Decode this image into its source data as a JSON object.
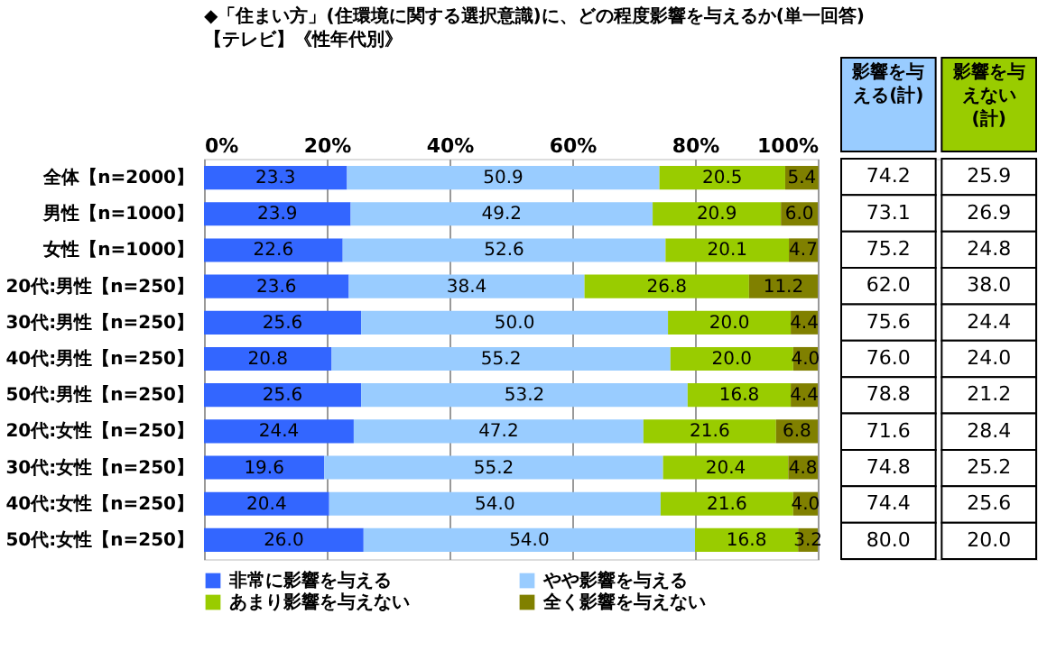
{
  "chart_data": [
    {
      "type": "bar",
      "orientation": "horizontal",
      "stacked": true,
      "title": "◆「住まい方」(住環境に関する選択意識)に、どの程度影響を与えるか(単一回答)",
      "subtitle": "【テレビ】《性年代別》",
      "categories": [
        "全体【n=2000】",
        "男性【n=1000】",
        "女性【n=1000】",
        "20代:男性【n=250】",
        "30代:男性【n=250】",
        "40代:男性【n=250】",
        "50代:男性【n=250】",
        "20代:女性【n=250】",
        "30代:女性【n=250】",
        "40代:女性【n=250】",
        "50代:女性【n=250】"
      ],
      "series": [
        {
          "name": "非常に影響を与える",
          "color": "#3366ff",
          "values": [
            23.3,
            23.9,
            22.6,
            23.6,
            25.6,
            20.8,
            25.6,
            24.4,
            19.6,
            20.4,
            26.0
          ],
          "value_labels": [
            "23.3",
            "23.9",
            "22.6",
            "23.6",
            "25.6",
            "20.8",
            "25.6",
            "24.4",
            "19.6",
            "20.4",
            "26.0"
          ]
        },
        {
          "name": "やや影響を与える",
          "color": "#99ccff",
          "values": [
            50.9,
            49.2,
            52.6,
            38.4,
            50.0,
            55.2,
            53.2,
            47.2,
            55.2,
            54.0,
            54.0
          ],
          "value_labels": [
            "50.9",
            "49.2",
            "52.6",
            "38.4",
            "50.0",
            "55.2",
            "53.2",
            "47.2",
            "55.2",
            "54.0",
            "54.0"
          ]
        },
        {
          "name": "あまり影響を与えない",
          "color": "#99cc00",
          "values": [
            20.5,
            20.9,
            20.1,
            26.8,
            20.0,
            20.0,
            16.8,
            21.6,
            20.4,
            21.6,
            16.8
          ],
          "value_labels": [
            "20.5",
            "20.9",
            "20.1",
            "26.8",
            "20.0",
            "20.0",
            "16.8",
            "21.6",
            "20.4",
            "21.6",
            "16.8"
          ]
        },
        {
          "name": "全く影響を与えない",
          "color": "#808000",
          "values": [
            5.4,
            6.0,
            4.7,
            11.2,
            4.4,
            4.0,
            4.4,
            6.8,
            4.8,
            4.0,
            3.2
          ],
          "value_labels": [
            "5.4",
            "6.0",
            "4.7",
            "11.2",
            "4.4",
            "4.0",
            "4.4",
            "6.8",
            "4.8",
            "4.0",
            "3.2"
          ]
        }
      ],
      "xlim": [
        0,
        100
      ],
      "xticks": [
        {
          "value": 0,
          "label": "0%"
        },
        {
          "value": 20,
          "label": "20%"
        },
        {
          "value": 40,
          "label": "40%"
        },
        {
          "value": 60,
          "label": "60%"
        },
        {
          "value": 80,
          "label": "80%"
        },
        {
          "value": 100,
          "label": "100%"
        }
      ],
      "grid": "x",
      "legend": "bottom"
    },
    {
      "type": "other",
      "categories": [
        "影響を与える(計)",
        "影響を与えない(計)"
      ],
      "colors": [
        "#99ccff",
        "#99cc00"
      ],
      "annotations": [
        "74.2",
        "25.9",
        "73.1",
        "26.9",
        "75.2",
        "24.8",
        "62.0",
        "38.0",
        "75.6",
        "24.4",
        "76.0",
        "24.0",
        "78.8",
        "21.2",
        "71.6",
        "28.4",
        "74.8",
        "25.2",
        "74.4",
        "25.6",
        "80.0",
        "20.0"
      ]
    }
  ]
}
